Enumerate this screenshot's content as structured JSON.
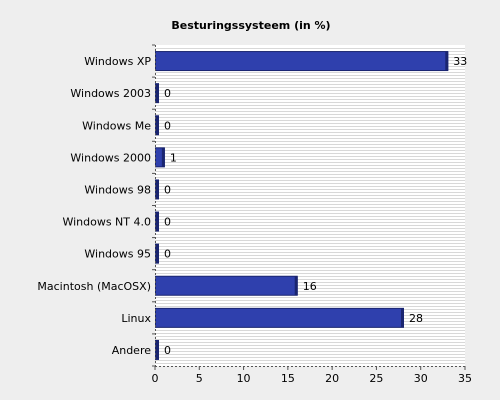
{
  "chart_data": {
    "type": "bar",
    "orientation": "horizontal",
    "title": "Besturingssysteem (in %)",
    "xlabel": "",
    "ylabel": "",
    "categories": [
      "Windows XP",
      "Windows 2003",
      "Windows Me",
      "Windows 2000",
      "Windows 98",
      "Windows NT 4.0",
      "Windows 95",
      "Macintosh (MacOSX)",
      "Linux",
      "Andere"
    ],
    "values": [
      33,
      0,
      0,
      1,
      0,
      0,
      0,
      16,
      28,
      0
    ],
    "data_labels": [
      "33",
      "0",
      "0",
      "1",
      "0",
      "0",
      "0",
      "16",
      "28",
      "0"
    ],
    "xlim": [
      0,
      35
    ],
    "xticks": [
      "0",
      "5",
      "10",
      "15",
      "20",
      "25",
      "30",
      "35"
    ],
    "grid": true,
    "legend": "none",
    "colors": {
      "bar": "#2f40ad",
      "bar_edge": "#1a2570",
      "background": "#eeeeee",
      "plot_background": "#ffffff",
      "grid": "#d8d8d8"
    }
  }
}
